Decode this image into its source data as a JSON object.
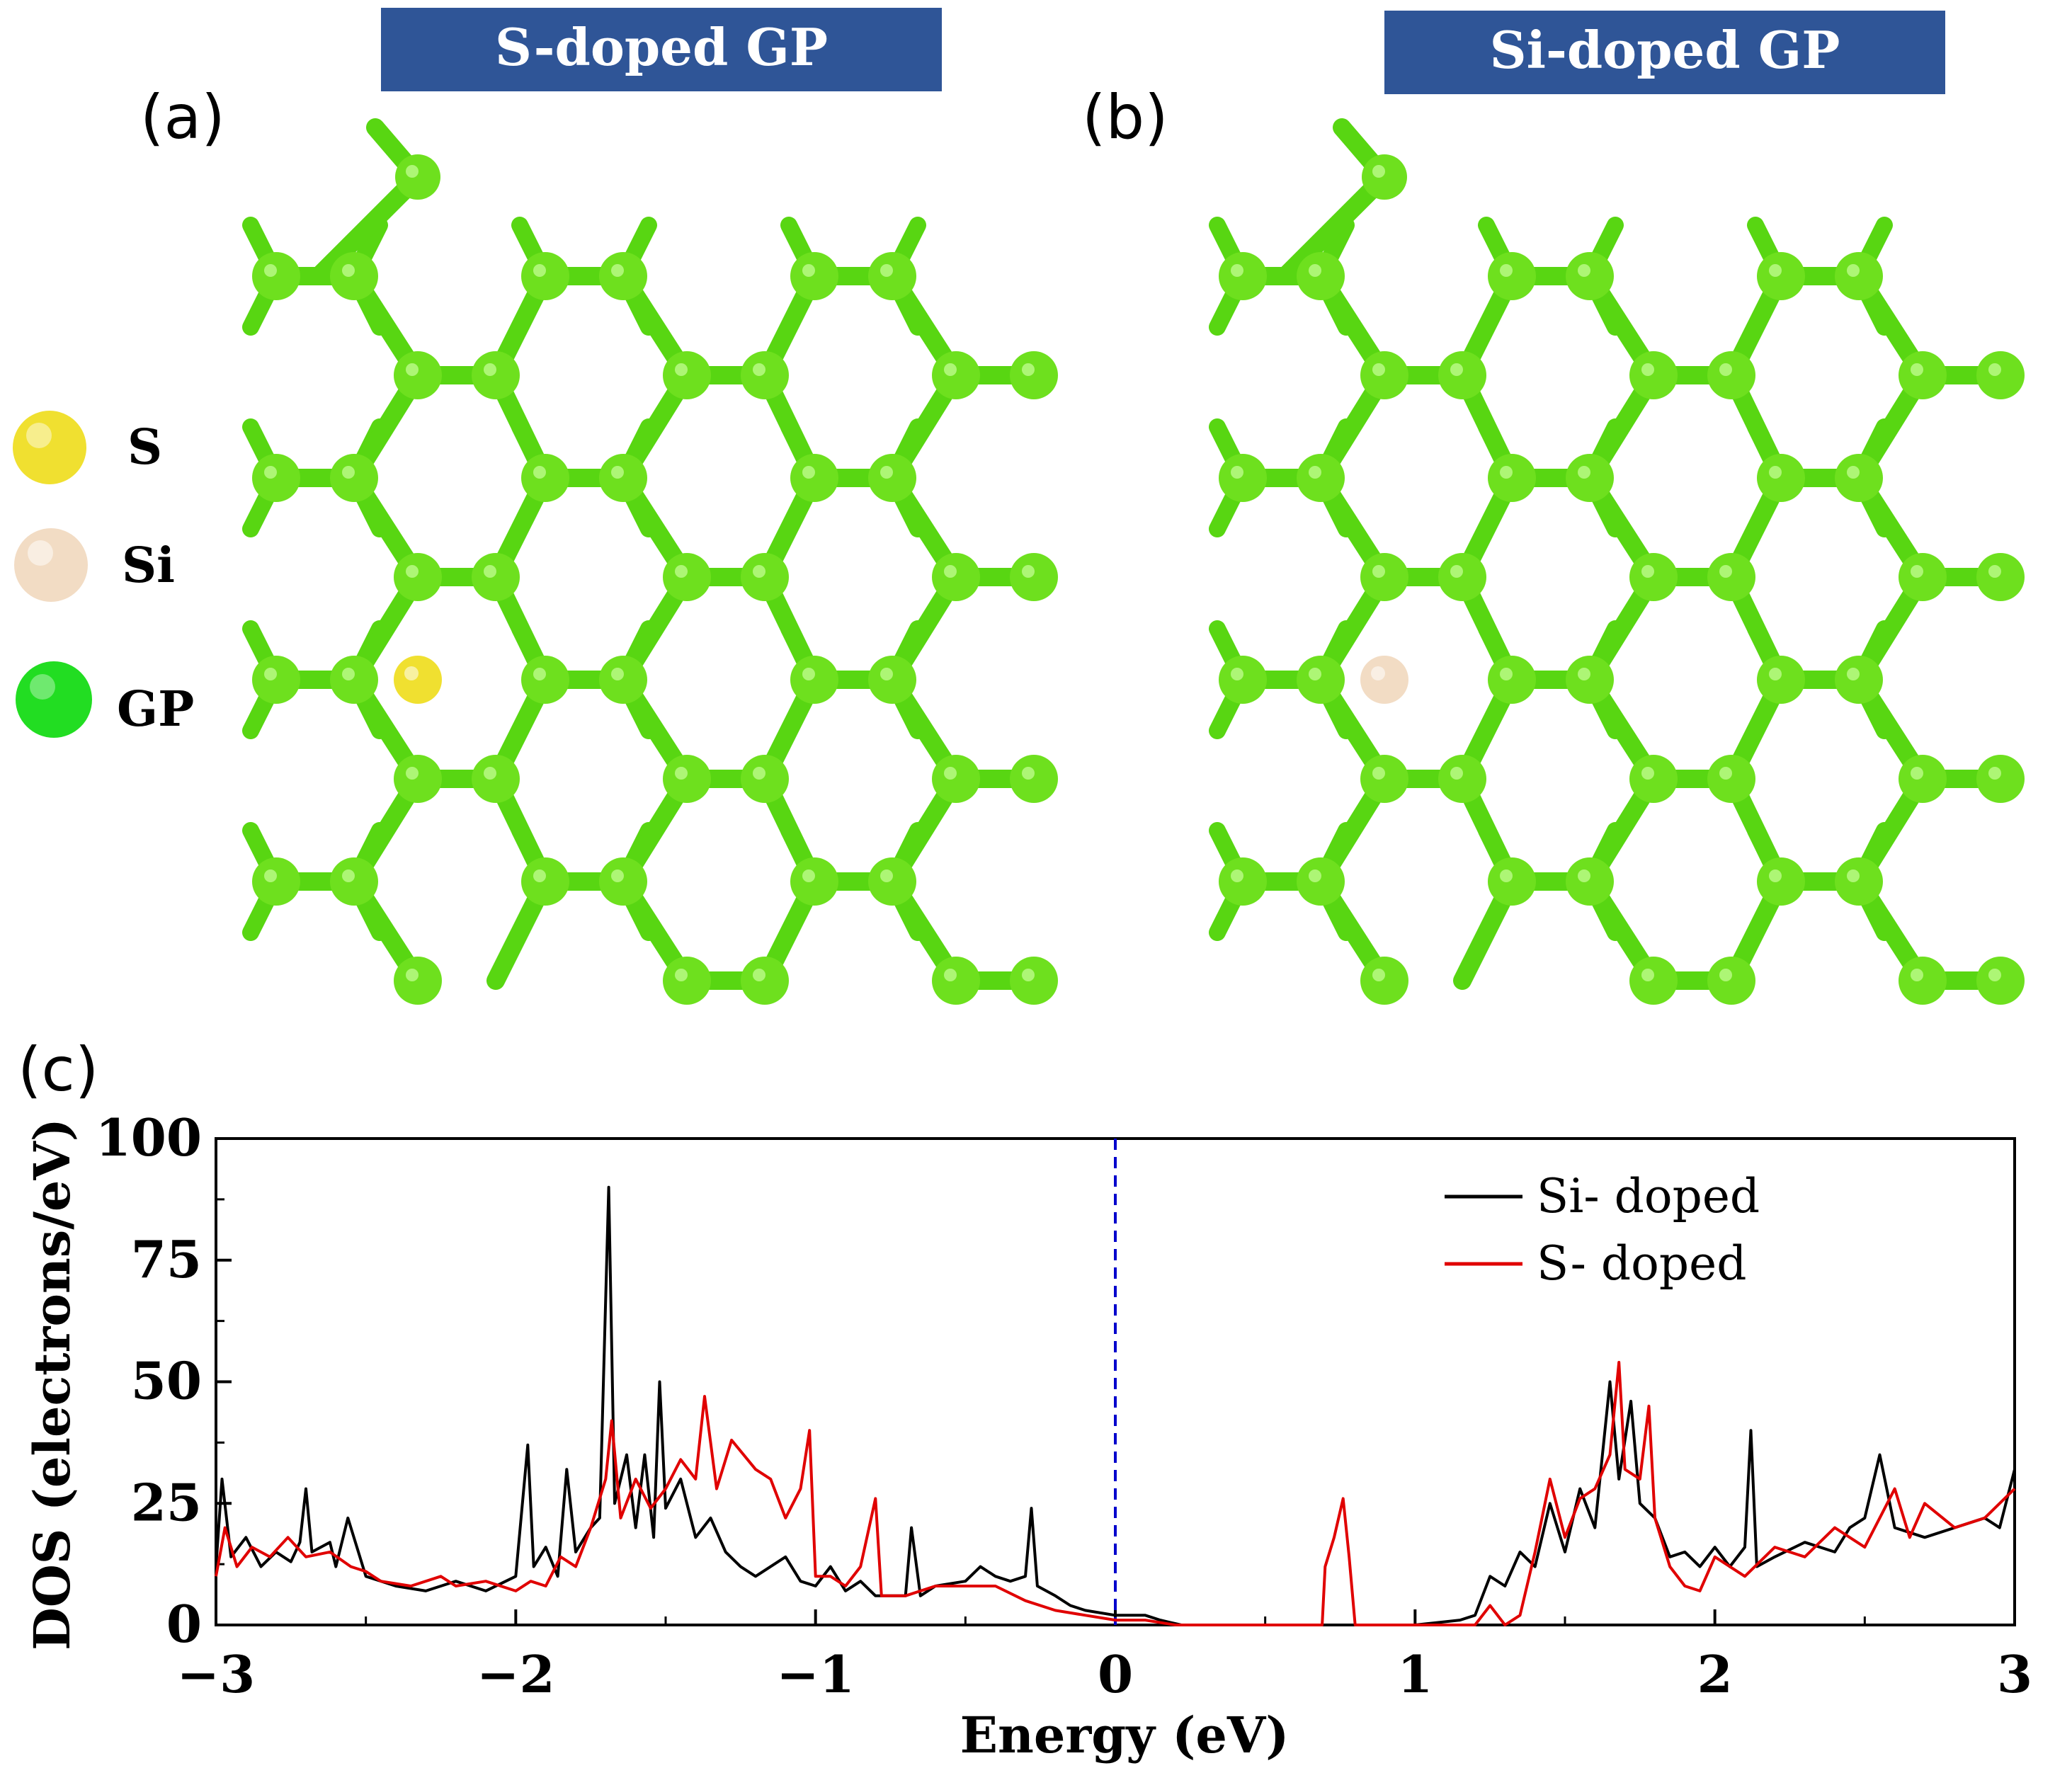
{
  "panels": {
    "a": {
      "label": "(a)",
      "banner": "S-doped GP",
      "dopant": "S"
    },
    "b": {
      "label": "(b)",
      "banner": "Si-doped GP",
      "dopant": "Si"
    },
    "c": {
      "label": "(c)"
    }
  },
  "atom_legend": [
    {
      "label": "S",
      "color": "#f0e030"
    },
    {
      "label": "Si",
      "color": "#f2dcc4"
    },
    {
      "label": "GP",
      "color": "#22dd22"
    }
  ],
  "colors": {
    "banner": "#2f5597",
    "carbon_atom": "#6ee01e",
    "carbon_bond": "#58d612",
    "sulfur_atom": "#f0e030",
    "silicon_atom": "#f2dcc4",
    "fermi_line": "#0000cc"
  },
  "chart_data": {
    "type": "line",
    "xlabel": "Energy (eV)",
    "ylabel": "DOS (electrons/eV)",
    "xlim": [
      -3,
      3
    ],
    "ylim": [
      0,
      100
    ],
    "xticks": [
      "−3",
      "−2",
      "−1",
      "0",
      "1",
      "2",
      "3"
    ],
    "yticks": [
      "0",
      "25",
      "50",
      "75",
      "100"
    ],
    "fermi_level": 0,
    "legend_position": "top-right",
    "series": [
      {
        "name": "Si- doped",
        "color": "#000000",
        "points": [
          [
            -3.0,
            12
          ],
          [
            -2.98,
            30
          ],
          [
            -2.95,
            14
          ],
          [
            -2.9,
            18
          ],
          [
            -2.85,
            12
          ],
          [
            -2.8,
            15
          ],
          [
            -2.75,
            13
          ],
          [
            -2.72,
            17
          ],
          [
            -2.7,
            28
          ],
          [
            -2.68,
            15
          ],
          [
            -2.62,
            17
          ],
          [
            -2.6,
            12
          ],
          [
            -2.56,
            22
          ],
          [
            -2.5,
            10
          ],
          [
            -2.4,
            8
          ],
          [
            -2.3,
            7
          ],
          [
            -2.2,
            9
          ],
          [
            -2.1,
            7
          ],
          [
            -2.0,
            10
          ],
          [
            -1.96,
            37
          ],
          [
            -1.94,
            12
          ],
          [
            -1.9,
            16
          ],
          [
            -1.86,
            10
          ],
          [
            -1.83,
            32
          ],
          [
            -1.8,
            15
          ],
          [
            -1.75,
            20
          ],
          [
            -1.72,
            22
          ],
          [
            -1.69,
            90
          ],
          [
            -1.67,
            25
          ],
          [
            -1.63,
            35
          ],
          [
            -1.6,
            20
          ],
          [
            -1.57,
            35
          ],
          [
            -1.54,
            18
          ],
          [
            -1.52,
            50
          ],
          [
            -1.5,
            24
          ],
          [
            -1.45,
            30
          ],
          [
            -1.4,
            18
          ],
          [
            -1.35,
            22
          ],
          [
            -1.3,
            15
          ],
          [
            -1.25,
            12
          ],
          [
            -1.2,
            10
          ],
          [
            -1.1,
            14
          ],
          [
            -1.05,
            9
          ],
          [
            -1.0,
            8
          ],
          [
            -0.95,
            12
          ],
          [
            -0.9,
            7
          ],
          [
            -0.85,
            9
          ],
          [
            -0.8,
            6
          ],
          [
            -0.7,
            6
          ],
          [
            -0.68,
            20
          ],
          [
            -0.65,
            6
          ],
          [
            -0.6,
            8
          ],
          [
            -0.5,
            9
          ],
          [
            -0.45,
            12
          ],
          [
            -0.4,
            10
          ],
          [
            -0.35,
            9
          ],
          [
            -0.3,
            10
          ],
          [
            -0.28,
            24
          ],
          [
            -0.26,
            8
          ],
          [
            -0.2,
            6
          ],
          [
            -0.15,
            4
          ],
          [
            -0.1,
            3
          ],
          [
            0.0,
            2
          ],
          [
            0.05,
            2
          ],
          [
            0.1,
            2
          ],
          [
            0.15,
            1
          ],
          [
            0.22,
            0
          ],
          [
            0.3,
            0
          ],
          [
            0.5,
            0
          ],
          [
            0.8,
            0
          ],
          [
            1.0,
            0
          ],
          [
            1.15,
            1
          ],
          [
            1.2,
            2
          ],
          [
            1.25,
            10
          ],
          [
            1.3,
            8
          ],
          [
            1.35,
            15
          ],
          [
            1.4,
            12
          ],
          [
            1.45,
            25
          ],
          [
            1.5,
            15
          ],
          [
            1.55,
            28
          ],
          [
            1.6,
            20
          ],
          [
            1.65,
            50
          ],
          [
            1.68,
            30
          ],
          [
            1.72,
            46
          ],
          [
            1.75,
            25
          ],
          [
            1.8,
            22
          ],
          [
            1.85,
            14
          ],
          [
            1.9,
            15
          ],
          [
            1.95,
            12
          ],
          [
            2.0,
            16
          ],
          [
            2.05,
            12
          ],
          [
            2.1,
            16
          ],
          [
            2.12,
            40
          ],
          [
            2.14,
            12
          ],
          [
            2.2,
            14
          ],
          [
            2.3,
            17
          ],
          [
            2.4,
            15
          ],
          [
            2.45,
            20
          ],
          [
            2.5,
            22
          ],
          [
            2.55,
            35
          ],
          [
            2.6,
            20
          ],
          [
            2.7,
            18
          ],
          [
            2.8,
            20
          ],
          [
            2.9,
            22
          ],
          [
            2.95,
            20
          ],
          [
            3.0,
            32
          ]
        ]
      },
      {
        "name": "S- doped",
        "color": "#e00000",
        "points": [
          [
            -3.0,
            10
          ],
          [
            -2.97,
            20
          ],
          [
            -2.93,
            12
          ],
          [
            -2.88,
            16
          ],
          [
            -2.82,
            14
          ],
          [
            -2.76,
            18
          ],
          [
            -2.7,
            14
          ],
          [
            -2.62,
            15
          ],
          [
            -2.55,
            12
          ],
          [
            -2.5,
            11
          ],
          [
            -2.45,
            9
          ],
          [
            -2.35,
            8
          ],
          [
            -2.25,
            10
          ],
          [
            -2.2,
            8
          ],
          [
            -2.1,
            9
          ],
          [
            -2.0,
            7
          ],
          [
            -1.95,
            9
          ],
          [
            -1.9,
            8
          ],
          [
            -1.85,
            14
          ],
          [
            -1.8,
            12
          ],
          [
            -1.75,
            20
          ],
          [
            -1.7,
            30
          ],
          [
            -1.68,
            42
          ],
          [
            -1.65,
            22
          ],
          [
            -1.6,
            30
          ],
          [
            -1.55,
            24
          ],
          [
            -1.5,
            28
          ],
          [
            -1.45,
            34
          ],
          [
            -1.4,
            30
          ],
          [
            -1.37,
            47
          ],
          [
            -1.33,
            28
          ],
          [
            -1.28,
            38
          ],
          [
            -1.2,
            32
          ],
          [
            -1.15,
            30
          ],
          [
            -1.1,
            22
          ],
          [
            -1.05,
            28
          ],
          [
            -1.02,
            40
          ],
          [
            -1.0,
            10
          ],
          [
            -0.95,
            10
          ],
          [
            -0.9,
            8
          ],
          [
            -0.85,
            12
          ],
          [
            -0.8,
            26
          ],
          [
            -0.78,
            6
          ],
          [
            -0.7,
            6
          ],
          [
            -0.6,
            8
          ],
          [
            -0.5,
            8
          ],
          [
            -0.4,
            8
          ],
          [
            -0.3,
            5
          ],
          [
            -0.2,
            3
          ],
          [
            -0.1,
            2
          ],
          [
            0.0,
            1
          ],
          [
            0.1,
            1
          ],
          [
            0.2,
            0
          ],
          [
            0.5,
            0
          ],
          [
            0.69,
            0
          ],
          [
            0.7,
            12
          ],
          [
            0.73,
            18
          ],
          [
            0.76,
            26
          ],
          [
            0.78,
            14
          ],
          [
            0.8,
            0
          ],
          [
            1.0,
            0
          ],
          [
            1.2,
            0
          ],
          [
            1.25,
            4
          ],
          [
            1.3,
            0
          ],
          [
            1.35,
            2
          ],
          [
            1.4,
            15
          ],
          [
            1.45,
            30
          ],
          [
            1.5,
            18
          ],
          [
            1.55,
            26
          ],
          [
            1.6,
            28
          ],
          [
            1.65,
            35
          ],
          [
            1.68,
            54
          ],
          [
            1.7,
            32
          ],
          [
            1.75,
            30
          ],
          [
            1.78,
            45
          ],
          [
            1.8,
            22
          ],
          [
            1.85,
            12
          ],
          [
            1.9,
            8
          ],
          [
            1.95,
            7
          ],
          [
            2.0,
            14
          ],
          [
            2.1,
            10
          ],
          [
            2.2,
            16
          ],
          [
            2.3,
            14
          ],
          [
            2.4,
            20
          ],
          [
            2.5,
            16
          ],
          [
            2.6,
            28
          ],
          [
            2.65,
            18
          ],
          [
            2.7,
            25
          ],
          [
            2.8,
            20
          ],
          [
            2.9,
            22
          ],
          [
            3.0,
            28
          ]
        ]
      }
    ]
  }
}
